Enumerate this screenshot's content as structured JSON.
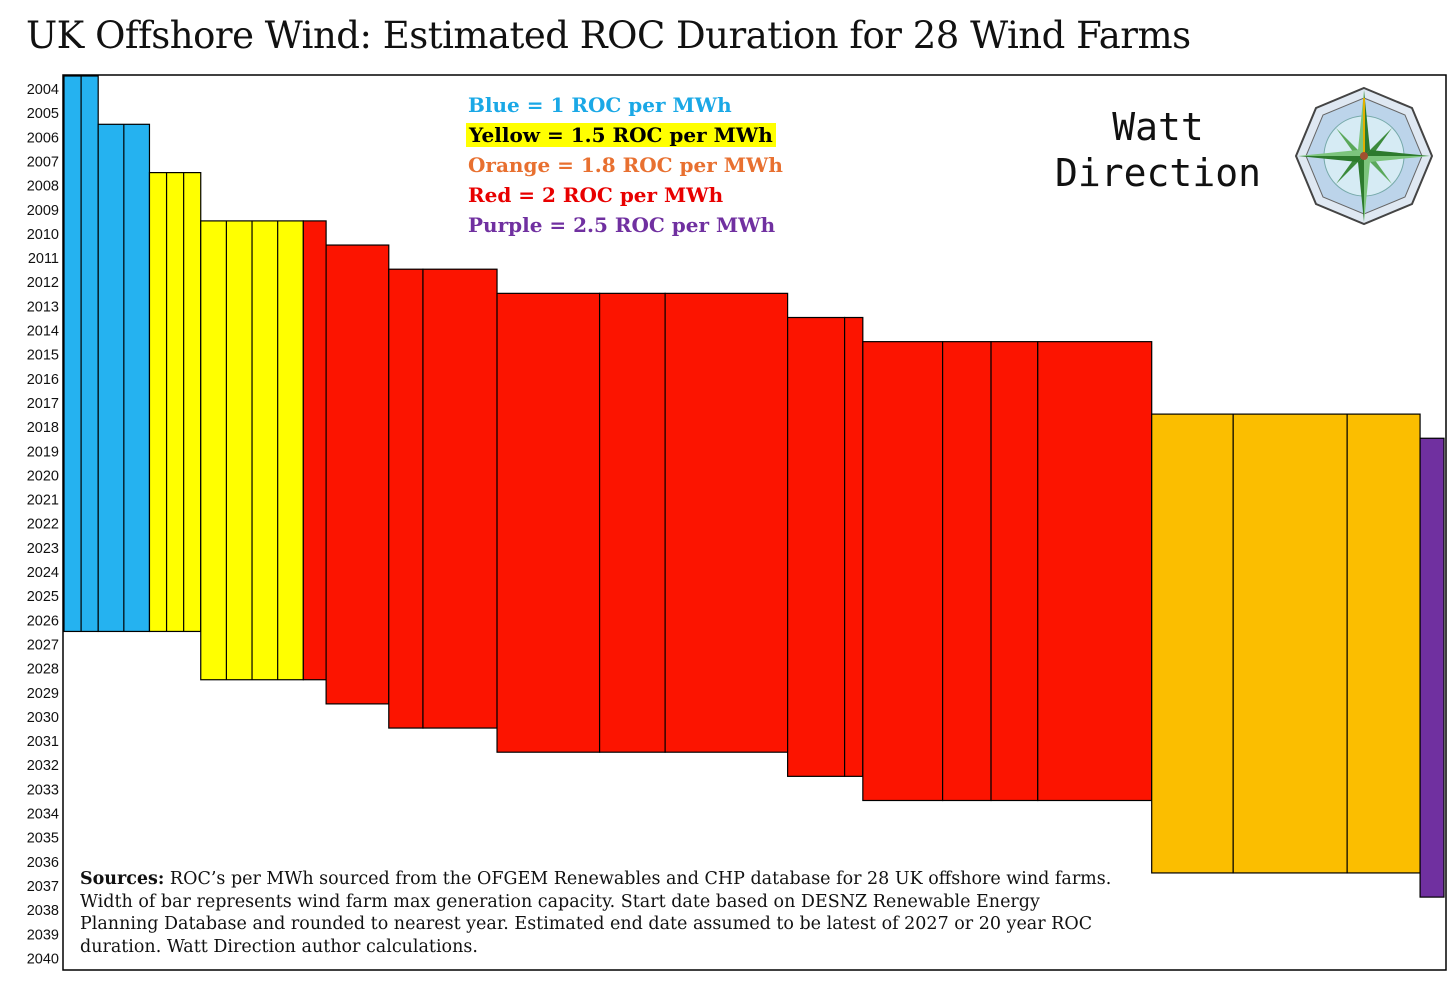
{
  "title": "UK Offshore Wind: Estimated ROC Duration for 28 Wind Farms",
  "legend": {
    "blue": "Blue = 1 ROC per MWh",
    "yellow": "Yellow = 1.5 ROC per MWh",
    "orange": "Orange = 1.8 ROC per MWh",
    "red": "Red = 2 ROC per MWh",
    "purple": "Purple =  2.5 ROC per MWh"
  },
  "brand": {
    "line1": "Watt",
    "line2": "Direction"
  },
  "sources": {
    "label": "Sources:",
    "text": " ROC’s per MWh sourced from the OFGEM Renewables and CHP database for 28 UK offshore wind farms. Width of bar represents wind farm max generation capacity. Start date based on DESNZ Renewable Energy Planning Database and rounded to nearest year. Estimated end date assumed to be latest of 2027 or 20 year ROC duration. Watt Direction author calculations."
  },
  "colors": {
    "blue": "#25b2f0",
    "yellow": "#ffff00",
    "orange": "#fbbe00",
    "red": "#fc1400",
    "purple": "#7030a0",
    "legend_blue": "#1aa8e6",
    "legend_orange": "#e87030",
    "legend_red": "#e80000",
    "legend_purple": "#7030a0"
  },
  "chart_data": {
    "type": "bar",
    "title": "UK Offshore Wind: Estimated ROC Duration for 28 Wind Farms",
    "y_axis": {
      "min": 2004,
      "max": 2040,
      "reversed": true,
      "ticks": [
        2004,
        2005,
        2006,
        2007,
        2008,
        2009,
        2010,
        2011,
        2012,
        2013,
        2014,
        2015,
        2016,
        2017,
        2018,
        2019,
        2020,
        2021,
        2022,
        2023,
        2024,
        2025,
        2026,
        2027,
        2028,
        2029,
        2030,
        2031,
        2032,
        2033,
        2034,
        2035,
        2036,
        2037,
        2038,
        2039,
        2040
      ]
    },
    "bar_width_meaning": "wind farm max generation capacity (relative)",
    "series": [
      {
        "roc": 1,
        "color": "blue",
        "start": 2004,
        "end": 2027,
        "capacity": 60
      },
      {
        "roc": 1,
        "color": "blue",
        "start": 2006,
        "end": 2027,
        "capacity": 90
      },
      {
        "roc": 1.5,
        "color": "yellow",
        "start": 2008,
        "end": 2027,
        "capacity": 90
      },
      {
        "roc": 1.5,
        "color": "yellow",
        "start": 2010,
        "end": 2029,
        "capacity": 180
      },
      {
        "roc": 2,
        "color": "red",
        "start": 2010,
        "end": 2029,
        "capacity": 40
      },
      {
        "roc": 2,
        "color": "red",
        "start": 2011,
        "end": 2030,
        "capacity": 110
      },
      {
        "roc": 2,
        "color": "red",
        "start": 2012,
        "end": 2031,
        "capacity": 60
      },
      {
        "roc": 2,
        "color": "red",
        "start": 2012,
        "end": 2031,
        "capacity": 130
      },
      {
        "roc": 2,
        "color": "red",
        "start": 2013,
        "end": 2032,
        "capacity": 180
      },
      {
        "roc": 2,
        "color": "red",
        "start": 2013,
        "end": 2032,
        "capacity": 115
      },
      {
        "roc": 2,
        "color": "red",
        "start": 2013,
        "end": 2032,
        "capacity": 215
      },
      {
        "roc": 2,
        "color": "red",
        "start": 2014,
        "end": 2033,
        "capacity": 100
      },
      {
        "roc": 2,
        "color": "red",
        "start": 2014,
        "end": 2033,
        "capacity": 32
      },
      {
        "roc": 2,
        "color": "red",
        "start": 2015,
        "end": 2034,
        "capacity": 140
      },
      {
        "roc": 2,
        "color": "red",
        "start": 2015,
        "end": 2034,
        "capacity": 85
      },
      {
        "roc": 2,
        "color": "red",
        "start": 2015,
        "end": 2034,
        "capacity": 82
      },
      {
        "roc": 2,
        "color": "red",
        "start": 2015,
        "end": 2034,
        "capacity": 200
      },
      {
        "roc": 1.8,
        "color": "orange",
        "start": 2018,
        "end": 2037,
        "capacity": 143
      },
      {
        "roc": 1.8,
        "color": "orange",
        "start": 2018,
        "end": 2037,
        "capacity": 200
      },
      {
        "roc": 1.8,
        "color": "orange",
        "start": 2018,
        "end": 2037,
        "capacity": 128
      },
      {
        "roc": 2.5,
        "color": "purple",
        "start": 2019,
        "end": 2038,
        "capacity": 42
      }
    ],
    "sub_dividers": [
      {
        "group": 0,
        "count": 2
      },
      {
        "group": 1,
        "count": 2
      },
      {
        "group": 2,
        "count": 3
      },
      {
        "group": 3,
        "count": 4
      }
    ]
  }
}
